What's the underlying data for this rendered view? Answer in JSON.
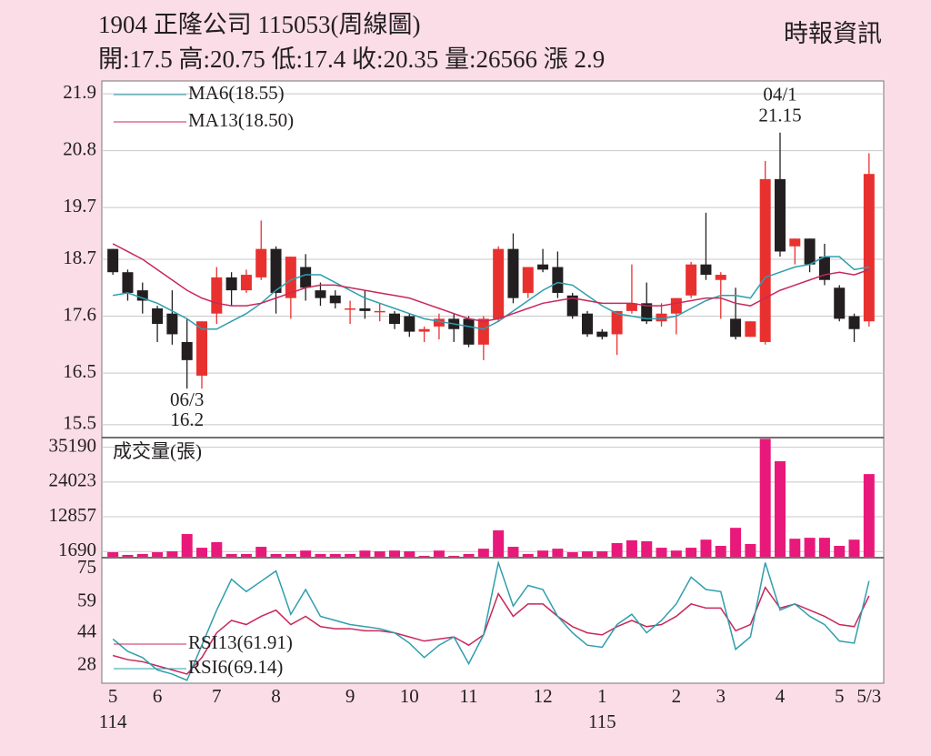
{
  "header": {
    "title": "1904  正隆公司 115053(周線圖)",
    "source": "時報資訊",
    "summary": "開:17.5 高:20.75 低:17.4 收:20.35 量:26566 漲 2.9"
  },
  "chart_data": [
    {
      "type": "candlestick",
      "categories": [
        "5",
        null,
        null,
        "6",
        null,
        null,
        null,
        "7",
        null,
        null,
        null,
        "8",
        null,
        null,
        null,
        null,
        "9",
        null,
        null,
        null,
        "10",
        null,
        null,
        null,
        "11",
        null,
        null,
        null,
        null,
        "12",
        null,
        null,
        null,
        "1",
        null,
        null,
        null,
        null,
        "2",
        null,
        null,
        "3",
        null,
        null,
        null,
        "4",
        null,
        null,
        null,
        "5",
        null,
        "5/3"
      ],
      "years": [
        "114",
        null,
        null,
        null,
        null,
        null,
        null,
        null,
        null,
        null,
        null,
        null,
        null,
        null,
        null,
        null,
        null,
        null,
        null,
        null,
        null,
        null,
        null,
        null,
        null,
        null,
        null,
        null,
        null,
        null,
        null,
        null,
        null,
        "115",
        null,
        null,
        null,
        null,
        null,
        null,
        null,
        null,
        null,
        null,
        null,
        null,
        null,
        null,
        null,
        null,
        null,
        null
      ],
      "point_labels": [
        null,
        null,
        null,
        null,
        null,
        "06/3",
        null,
        null,
        null,
        null,
        null,
        null,
        null,
        null,
        null,
        null,
        null,
        null,
        null,
        null,
        null,
        null,
        null,
        null,
        null,
        null,
        null,
        null,
        null,
        null,
        null,
        null,
        null,
        null,
        null,
        null,
        null,
        null,
        null,
        null,
        null,
        null,
        null,
        null,
        null,
        "04/1",
        null,
        null,
        null,
        null,
        null,
        null
      ],
      "open": [
        18.9,
        18.45,
        18.1,
        17.75,
        17.65,
        17.1,
        16.45,
        17.65,
        18.35,
        18.1,
        18.35,
        18.9,
        17.95,
        18.55,
        18.1,
        18.0,
        17.75,
        17.75,
        17.7,
        17.65,
        17.6,
        17.3,
        17.4,
        17.55,
        17.55,
        17.05,
        17.55,
        18.9,
        18.05,
        18.6,
        18.55,
        18.0,
        17.65,
        17.3,
        17.25,
        17.7,
        17.85,
        17.5,
        17.65,
        18.0,
        18.6,
        18.3,
        17.55,
        17.2,
        17.1,
        20.25,
        18.95,
        19.1,
        18.75,
        18.15,
        17.6,
        17.5
      ],
      "high": [
        18.9,
        18.5,
        18.25,
        17.8,
        18.1,
        17.55,
        17.5,
        18.55,
        18.45,
        18.5,
        19.45,
        18.95,
        18.75,
        18.8,
        18.25,
        18.1,
        17.9,
        18.1,
        17.85,
        17.7,
        17.65,
        17.4,
        17.65,
        17.65,
        17.6,
        17.6,
        18.95,
        19.2,
        18.55,
        18.9,
        18.85,
        18.05,
        17.7,
        17.35,
        17.7,
        18.6,
        18.25,
        17.85,
        17.95,
        18.65,
        19.6,
        18.45,
        18.15,
        17.5,
        20.6,
        21.15,
        19.1,
        19.1,
        19.0,
        18.2,
        17.65,
        20.75
      ],
      "low": [
        18.4,
        17.9,
        17.65,
        17.1,
        17.05,
        16.2,
        16.2,
        17.45,
        17.8,
        18.05,
        18.3,
        17.65,
        17.55,
        17.9,
        17.8,
        17.75,
        17.45,
        17.55,
        17.5,
        17.35,
        17.2,
        17.1,
        17.15,
        17.1,
        17.0,
        16.75,
        17.5,
        17.85,
        17.95,
        18.45,
        17.95,
        17.55,
        17.2,
        17.15,
        16.85,
        17.65,
        17.45,
        17.4,
        17.25,
        17.95,
        18.3,
        17.55,
        17.15,
        17.2,
        17.05,
        18.75,
        18.6,
        18.45,
        18.2,
        17.5,
        17.1,
        17.4
      ],
      "close": [
        18.45,
        18.05,
        17.9,
        17.45,
        17.25,
        16.75,
        17.5,
        18.35,
        18.1,
        18.4,
        18.9,
        18.05,
        18.75,
        18.15,
        17.95,
        17.85,
        17.75,
        17.7,
        17.7,
        17.45,
        17.3,
        17.35,
        17.55,
        17.35,
        17.05,
        17.55,
        18.9,
        17.95,
        18.55,
        18.5,
        18.05,
        17.6,
        17.25,
        17.2,
        17.7,
        17.85,
        17.5,
        17.65,
        17.95,
        18.6,
        18.4,
        18.4,
        17.2,
        17.5,
        20.25,
        18.85,
        19.1,
        18.6,
        18.3,
        17.55,
        17.35,
        20.35
      ],
      "up_color": "#e8312f",
      "down_color": "#231f20",
      "series": [
        {
          "name": "MA6(18.55)",
          "color": "#2e9eae",
          "values": [
            18.0,
            18.05,
            17.95,
            17.85,
            17.7,
            17.55,
            17.35,
            17.35,
            17.5,
            17.65,
            17.85,
            18.1,
            18.3,
            18.4,
            18.4,
            18.25,
            18.1,
            17.95,
            17.85,
            17.75,
            17.65,
            17.55,
            17.5,
            17.45,
            17.4,
            17.35,
            17.5,
            17.7,
            17.9,
            18.1,
            18.25,
            18.2,
            18.0,
            17.8,
            17.65,
            17.6,
            17.55,
            17.55,
            17.6,
            17.75,
            17.9,
            18.0,
            18.0,
            17.95,
            18.35,
            18.45,
            18.55,
            18.6,
            18.75,
            18.75,
            18.5,
            18.55
          ]
        },
        {
          "name": "MA13(18.50)",
          "color": "#c8285a",
          "values": [
            19.0,
            18.85,
            18.7,
            18.5,
            18.3,
            18.1,
            17.95,
            17.85,
            17.8,
            17.8,
            17.85,
            17.95,
            18.05,
            18.15,
            18.2,
            18.2,
            18.15,
            18.1,
            18.05,
            18.0,
            17.95,
            17.85,
            17.75,
            17.65,
            17.55,
            17.5,
            17.55,
            17.65,
            17.75,
            17.85,
            17.9,
            17.95,
            17.9,
            17.85,
            17.85,
            17.85,
            17.8,
            17.8,
            17.85,
            17.9,
            17.95,
            17.95,
            17.85,
            17.8,
            17.95,
            18.1,
            18.2,
            18.3,
            18.4,
            18.45,
            18.4,
            18.5
          ]
        }
      ],
      "ylim": [
        15.27,
        22.13
      ],
      "yticks": [
        15.5,
        16.5,
        17.6,
        18.7,
        19.7,
        20.8,
        21.9
      ],
      "grid": true
    },
    {
      "type": "bar",
      "title": "成交量(張)",
      "color": "#e8197a",
      "values": [
        1460,
        600,
        900,
        1460,
        1750,
        7300,
        2900,
        4700,
        900,
        900,
        3200,
        900,
        900,
        2000,
        900,
        900,
        900,
        2000,
        1750,
        2000,
        1750,
        300,
        2000,
        300,
        900,
        2600,
        8500,
        3200,
        900,
        2000,
        2600,
        1460,
        1750,
        1750,
        4400,
        5300,
        5000,
        2900,
        2000,
        2900,
        5500,
        3500,
        9300,
        4100,
        37900,
        30700,
        5800,
        6100,
        6100,
        3500,
        5500,
        26566
      ],
      "ylim": [
        0,
        38000
      ],
      "yticks": [
        1690,
        12857,
        24023,
        35190
      ],
      "grid": true
    },
    {
      "type": "line",
      "series": [
        {
          "name": "RSI13(61.91)",
          "color": "#c8285a",
          "values": [
            33,
            31,
            30,
            28,
            26,
            24,
            32,
            44,
            50,
            48,
            52,
            55,
            48,
            52,
            47,
            46,
            46,
            45,
            45,
            44,
            42,
            40,
            41,
            42,
            38,
            43,
            63,
            52,
            58,
            58,
            52,
            47,
            44,
            43,
            47,
            50,
            47,
            48,
            52,
            58,
            56,
            56,
            45,
            48,
            66,
            56,
            58,
            55,
            52,
            48,
            47,
            61.91
          ]
        },
        {
          "name": "RSI6(69.14)",
          "color": "#2e9eae",
          "values": [
            41,
            35,
            32,
            26,
            24,
            21,
            38,
            55,
            70,
            64,
            69,
            74,
            53,
            65,
            52,
            50,
            48,
            47,
            46,
            44,
            39,
            32,
            38,
            42,
            29,
            43,
            78,
            57,
            67,
            65,
            52,
            44,
            38,
            37,
            48,
            53,
            44,
            50,
            58,
            71,
            65,
            64,
            36,
            42,
            78,
            55,
            58,
            52,
            48,
            40,
            39,
            69.14
          ]
        }
      ],
      "ylim": [
        20,
        80
      ],
      "yticks": [
        28,
        44,
        59,
        75
      ],
      "grid": false
    }
  ]
}
